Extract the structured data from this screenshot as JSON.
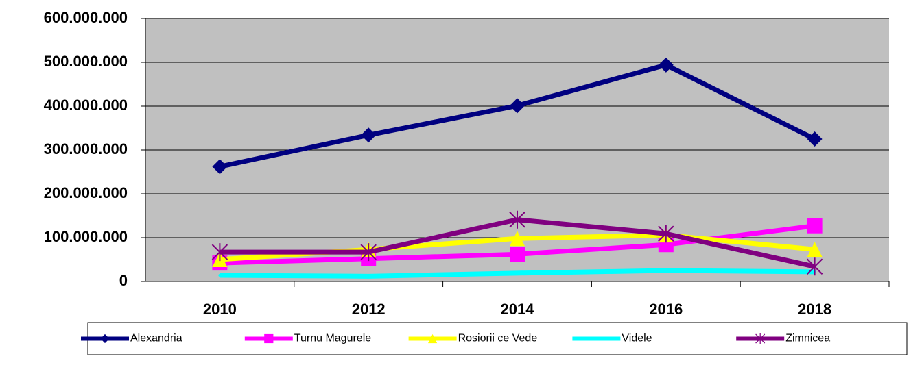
{
  "chart_data": {
    "type": "line",
    "categories": [
      "2010",
      "2012",
      "2014",
      "2016",
      "2018"
    ],
    "series": [
      {
        "name": "Alexandria",
        "color": "#000080",
        "marker": "diamond",
        "values": [
          262000000,
          334000000,
          401000000,
          494000000,
          325000000
        ]
      },
      {
        "name": "Turnu Magurele",
        "color": "#ff00ff",
        "marker": "square",
        "values": [
          42000000,
          52000000,
          62000000,
          84000000,
          127000000
        ]
      },
      {
        "name": "Rosiorii ce Vede",
        "color": "#ffff00",
        "marker": "triangle",
        "values": [
          50000000,
          73000000,
          98000000,
          106000000,
          73000000
        ]
      },
      {
        "name": "Videle",
        "color": "#00ffff",
        "marker": "none",
        "values": [
          14000000,
          12000000,
          19000000,
          25000000,
          22000000
        ]
      },
      {
        "name": "Zimnicea",
        "color": "#800080",
        "marker": "star",
        "values": [
          67000000,
          67000000,
          141000000,
          109000000,
          34000000
        ]
      }
    ],
    "ylim": [
      0,
      600000000
    ],
    "yticks": [
      0,
      {
        "value": 100000000,
        "label": "100.000.000"
      },
      {
        "value": 200000000,
        "label": "200.000.000"
      },
      {
        "value": 300000000,
        "label": "300.000.000"
      },
      {
        "value": 400000000,
        "label": "400.000.000"
      },
      {
        "value": 500000000,
        "label": "500.000.000"
      },
      {
        "value": 600000000,
        "label": "600.000.000"
      }
    ],
    "grid": true,
    "legend": "bottom"
  }
}
